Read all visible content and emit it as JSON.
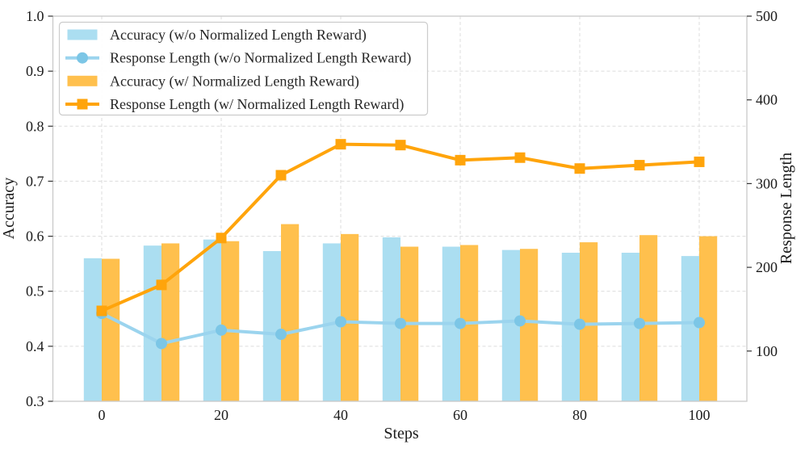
{
  "chart_data": {
    "type": "bar+line-dual-axis",
    "title": "",
    "xlabel": "Steps",
    "ylabel_left": "Accuracy",
    "ylabel_right": "Response Length",
    "x": [
      0,
      10,
      20,
      30,
      40,
      50,
      60,
      70,
      80,
      90,
      100
    ],
    "x_tick_labels": [
      "0",
      "20",
      "40",
      "60",
      "80",
      "100"
    ],
    "x_tick_values": [
      0,
      20,
      40,
      60,
      80,
      100
    ],
    "left_axis": {
      "ticks": [
        "0.3",
        "0.4",
        "0.5",
        "0.6",
        "0.7",
        "0.8",
        "0.9",
        "1.0"
      ],
      "tick_values": [
        0.3,
        0.4,
        0.5,
        0.6,
        0.7,
        0.8,
        0.9,
        1.0
      ],
      "ylim": [
        0.3,
        1.0
      ],
      "grid_at": [
        0.4,
        0.5,
        0.6,
        0.7,
        0.8,
        0.9
      ]
    },
    "right_axis": {
      "ticks": [
        "100",
        "200",
        "300",
        "400",
        "500"
      ],
      "tick_values": [
        100,
        200,
        300,
        400,
        500
      ],
      "ylim": [
        40,
        500
      ]
    },
    "grid": "dashed-lightgray-horizontal-and-vertical",
    "legend_position": "upper-left",
    "series": [
      {
        "name": "Accuracy (w/o Normalized Length Reward)",
        "type": "bar",
        "axis": "left",
        "color": "#ABDEF1",
        "values": [
          0.56,
          0.583,
          0.594,
          0.573,
          0.587,
          0.598,
          0.581,
          0.575,
          0.57,
          0.57,
          0.564
        ]
      },
      {
        "name": "Response Length (w/o Normalized Length Reward)",
        "type": "line",
        "marker": "circle",
        "axis": "right",
        "color": "#9BD4EE",
        "marker_color": "#7CC6E6",
        "values": [
          145,
          109,
          125,
          120,
          135,
          133,
          133,
          136,
          132,
          133,
          134
        ]
      },
      {
        "name": "Accuracy (w/ Normalized Length Reward)",
        "type": "bar",
        "axis": "left",
        "color": "#FFC04D",
        "values": [
          0.559,
          0.587,
          0.591,
          0.622,
          0.604,
          0.581,
          0.584,
          0.577,
          0.589,
          0.602,
          0.6
        ]
      },
      {
        "name": "Response Length (w/ Normalized Length Reward)",
        "type": "line",
        "marker": "square",
        "axis": "right",
        "color": "#FFA40B",
        "marker_color": "#FFA40B",
        "values": [
          148,
          179,
          235,
          310,
          347,
          346,
          328,
          331,
          318,
          322,
          326
        ]
      }
    ],
    "colors": {
      "grid": "#DCDCDC",
      "spine": "#C9C9C9",
      "tick_mark": "#333333",
      "legend_border": "#CCCCCC",
      "background": "#FFFFFF"
    }
  }
}
